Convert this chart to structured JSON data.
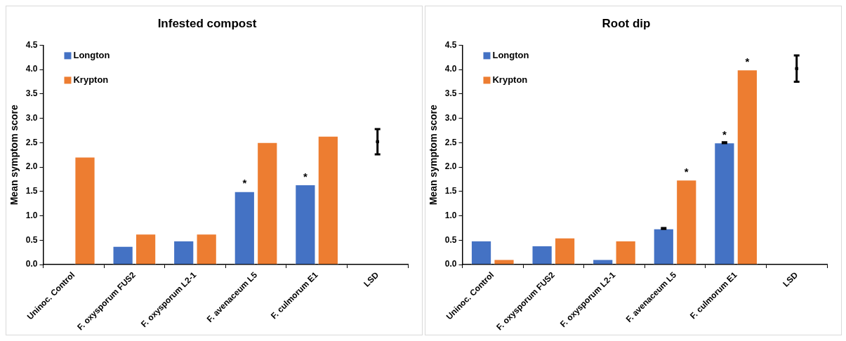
{
  "chart_data": [
    {
      "type": "bar",
      "title": "Infested compost",
      "ylabel": "Mean symptom score",
      "categories": [
        "Uninoc. Control",
        "F. oxysporum FUS2",
        "F. oxysporum L2-1",
        "F. avenaceum L5",
        "F. culmorum E1",
        "LSD"
      ],
      "series": [
        {
          "name": "Longton",
          "color": "#4472c4",
          "values": [
            0,
            0.38,
            0.49,
            1.5,
            1.64,
            null
          ]
        },
        {
          "name": "Krypton",
          "color": "#ed7d31",
          "values": [
            2.21,
            0.63,
            0.63,
            2.51,
            2.64,
            null
          ]
        },
        {
          "type": "scatter",
          "marker": "square",
          "color": "#000000",
          "values": [
            null,
            null,
            null,
            null,
            null,
            2.52
          ],
          "errors": [
            null,
            null,
            null,
            null,
            null,
            0.26
          ]
        }
      ],
      "ylim": [
        0,
        4.5
      ],
      "yticks": [
        {
          "value": 0,
          "label": "0.0"
        },
        {
          "value": 0.5,
          "label": "0.5"
        },
        {
          "value": 1,
          "label": "1.0"
        },
        {
          "value": 1.5,
          "label": "1.5"
        },
        {
          "value": 2,
          "label": "2.0"
        },
        {
          "value": 2.5,
          "label": "2.5"
        },
        {
          "value": 3,
          "label": "3.0"
        },
        {
          "value": 3.5,
          "label": "3.5"
        },
        {
          "value": 4,
          "label": "4.0"
        },
        {
          "value": 4.5,
          "label": "4.5"
        }
      ],
      "grid": false,
      "legend": "top left",
      "annotations": [
        {
          "text": "*",
          "x": "F. avenaceum L5",
          "y": 1.5
        },
        {
          "text": "*",
          "x": "F. culmorum E1",
          "y": 1.64
        }
      ]
    },
    {
      "type": "bar",
      "title": "Root dip",
      "ylabel": "Mean symptom score",
      "categories": [
        "Uninoc. Control",
        "F. oxysporum FUS2",
        "F. oxysporum L2-1",
        "F. avenaceum L5",
        "F. culmorum E1",
        "LSD"
      ],
      "series": [
        {
          "name": "Longton",
          "color": "#4472c4",
          "values": [
            0.49,
            0.39,
            0.11,
            0.74,
            2.5,
            null
          ],
          "errors": [
            null,
            null,
            null,
            0.01,
            0.01,
            null
          ]
        },
        {
          "name": "Krypton",
          "color": "#ed7d31",
          "values": [
            0.11,
            0.55,
            0.49,
            1.74,
            4.0,
            null
          ]
        },
        {
          "type": "scatter",
          "marker": "square",
          "color": "#000000",
          "values": [
            null,
            null,
            null,
            null,
            null,
            4.02
          ],
          "errors": [
            null,
            null,
            null,
            null,
            null,
            0.27
          ]
        }
      ],
      "ylim": [
        0,
        4.5
      ],
      "yticks": [
        {
          "value": 0,
          "label": "0.0"
        },
        {
          "value": 0.5,
          "label": "0.5"
        },
        {
          "value": 1,
          "label": "1.0"
        },
        {
          "value": 1.5,
          "label": "1.5"
        },
        {
          "value": 2,
          "label": "2.0"
        },
        {
          "value": 2.5,
          "label": "2.5"
        },
        {
          "value": 3,
          "label": "3.0"
        },
        {
          "value": 3.5,
          "label": "3.5"
        },
        {
          "value": 4,
          "label": "4.0"
        },
        {
          "value": 4.5,
          "label": "4.5"
        }
      ],
      "grid": false,
      "legend": "top left",
      "annotations": [
        {
          "text": "*",
          "x": "F. avenaceum L5",
          "y": 1.74
        },
        {
          "text": "*",
          "x": "F. culmorum E1",
          "y": 2.5
        },
        {
          "text": "*",
          "x": "F. culmorum E1",
          "y": 4.0
        }
      ]
    }
  ]
}
